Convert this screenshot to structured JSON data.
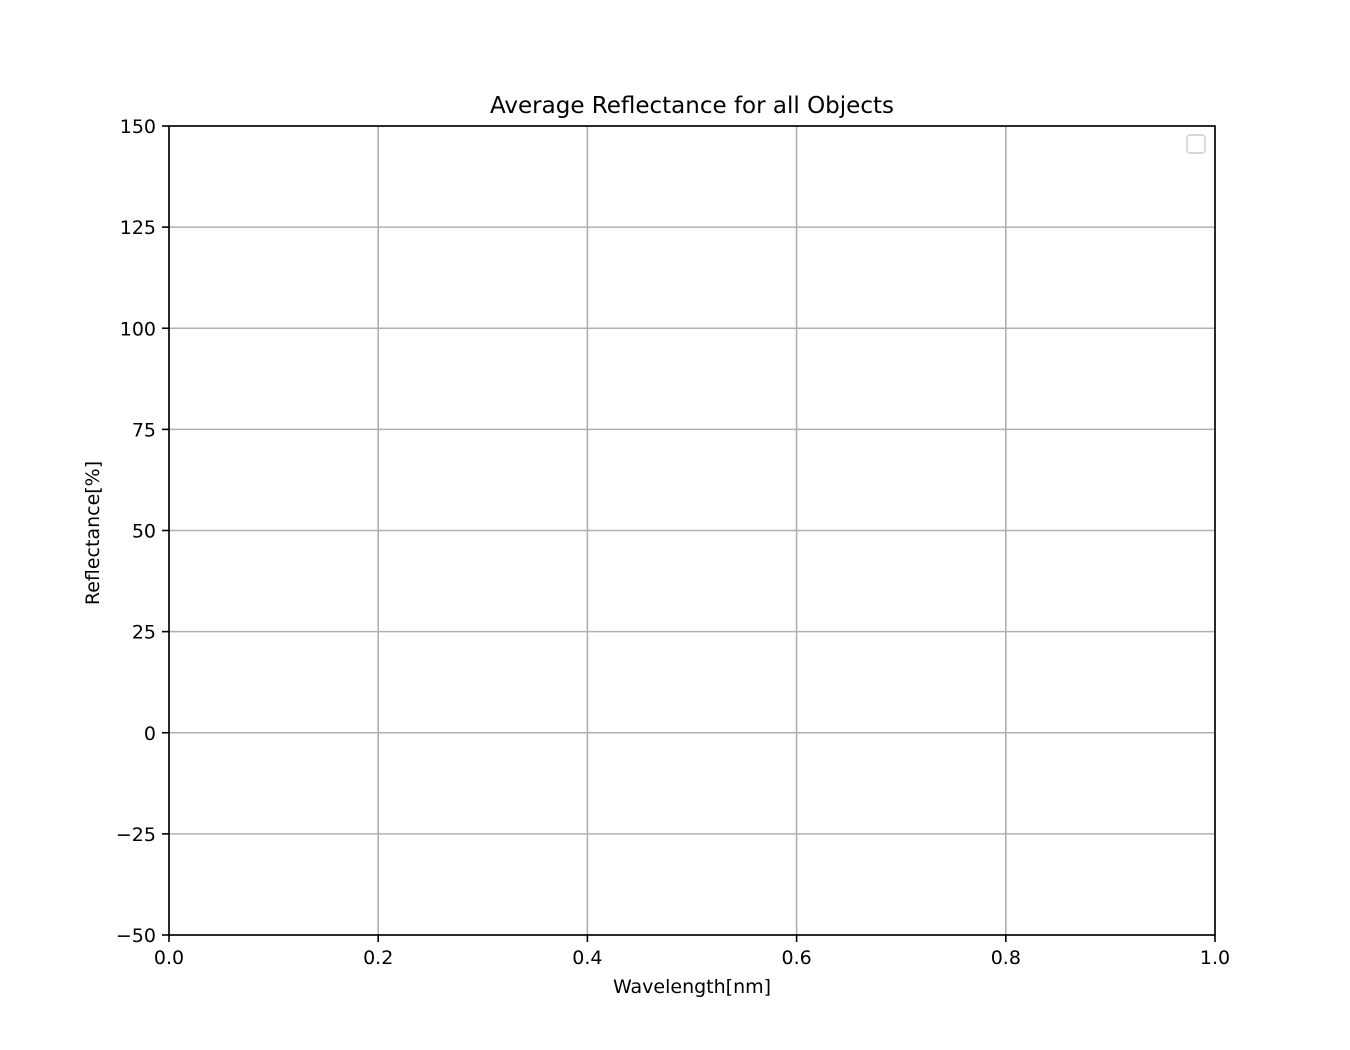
{
  "chart_data": {
    "type": "line",
    "title": "Average Reflectance for all Objects",
    "xlabel": "Wavelength[nm]",
    "ylabel": "Reflectance[%]",
    "xlim": [
      0.0,
      1.0
    ],
    "ylim": [
      -50,
      150
    ],
    "x_ticks": [
      0.0,
      0.2,
      0.4,
      0.6,
      0.8,
      1.0
    ],
    "x_tick_labels": [
      "0.0",
      "0.2",
      "0.4",
      "0.6",
      "0.8",
      "1.0"
    ],
    "y_ticks": [
      -50,
      -25,
      0,
      25,
      50,
      75,
      100,
      125,
      150
    ],
    "y_tick_labels": [
      "−50",
      "−25",
      "0",
      "25",
      "50",
      "75",
      "100",
      "125",
      "150"
    ],
    "grid": true,
    "legend": {
      "placement": "top-right",
      "entries": []
    },
    "series": []
  },
  "colors": {
    "background": "#ffffff",
    "axes_edge": "#000000",
    "grid": "#b0b0b0",
    "text": "#000000",
    "legend_edge": "#cccccc"
  }
}
